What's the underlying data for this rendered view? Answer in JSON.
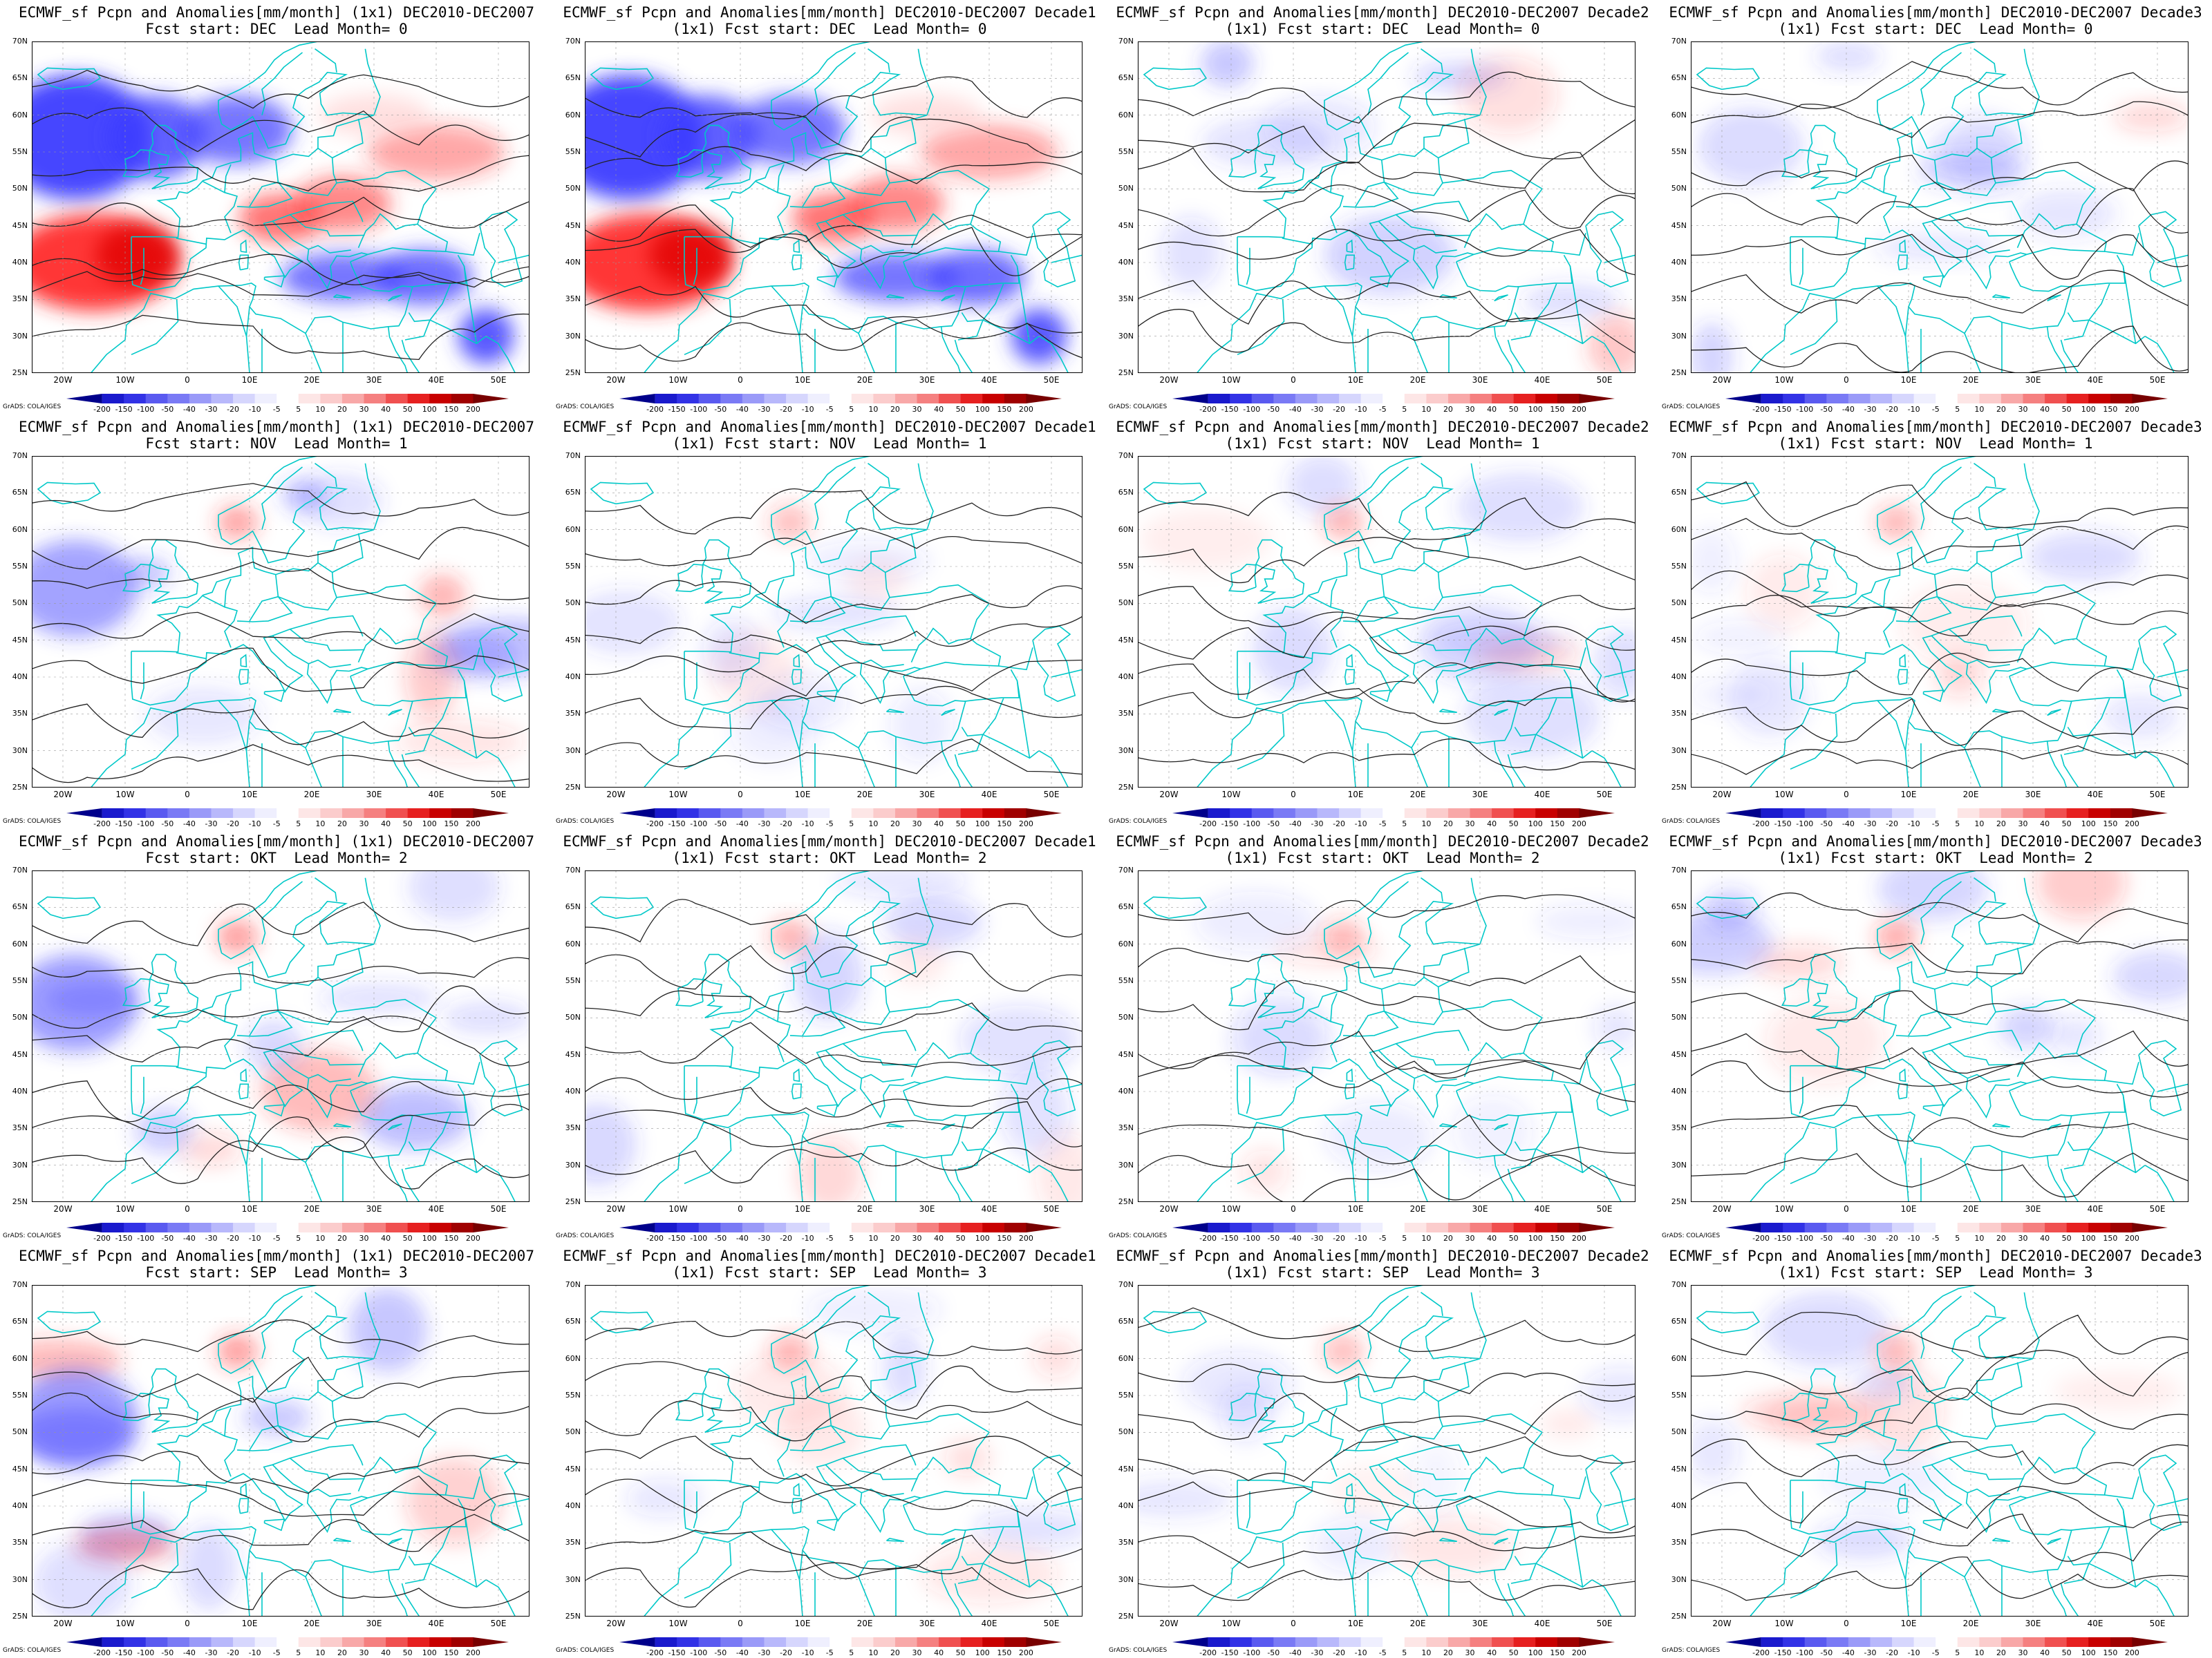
{
  "rows": [
    {
      "title_prefix": "ECMWF_sf Pcpn and Anomalies[mm/month]",
      "fcst_start": "DEC",
      "lead": "0"
    },
    {
      "title_prefix": "ECMWF_sf Pcpn and Anomalies[mm/month]",
      "fcst_start": "NOV",
      "lead": "1"
    },
    {
      "title_prefix": "ECMWF_sf Pcpn and Anomalies[mm/month]",
      "fcst_start": "OKT",
      "lead": "2"
    },
    {
      "title_prefix": "ECMWF_sf Pcpn and Anomalies[mm/month]",
      "fcst_start": "SEP",
      "lead": "3"
    }
  ],
  "panels": [
    {
      "line1": "ECMWF_sf Pcpn and Anomalies[mm/month] (1x1) DEC2010-DEC2007",
      "line2": "Fcst start: DEC  Lead Month= 0",
      "intensity": 1.0
    },
    {
      "line1": "ECMWF_sf Pcpn and Anomalies[mm/month] DEC2010-DEC2007 Decade1",
      "line2": "(1x1) Fcst start: DEC  Lead Month= 0",
      "intensity": 1.0
    },
    {
      "line1": "ECMWF_sf Pcpn and Anomalies[mm/month] DEC2010-DEC2007 Decade2",
      "line2": "(1x1) Fcst start: DEC  Lead Month= 0",
      "intensity": 0.4
    },
    {
      "line1": "ECMWF_sf Pcpn and Anomalies[mm/month] DEC2010-DEC2007 Decade3",
      "line2": "(1x1) Fcst start: DEC  Lead Month= 0",
      "intensity": 0.3
    },
    {
      "line1": "ECMWF_sf Pcpn and Anomalies[mm/month] (1x1) DEC2010-DEC2007",
      "line2": "Fcst start: NOV  Lead Month= 1",
      "intensity": 0.45
    },
    {
      "line1": "ECMWF_sf Pcpn and Anomalies[mm/month] DEC2010-DEC2007 Decade1",
      "line2": "(1x1) Fcst start: NOV  Lead Month= 1",
      "intensity": 0.2
    },
    {
      "line1": "ECMWF_sf Pcpn and Anomalies[mm/month] DEC2010-DEC2007 Decade2",
      "line2": "(1x1) Fcst start: NOV  Lead Month= 1",
      "intensity": 0.25
    },
    {
      "line1": "ECMWF_sf Pcpn and Anomalies[mm/month] DEC2010-DEC2007 Decade3",
      "line2": "(1x1) Fcst start: NOV  Lead Month= 1",
      "intensity": 0.25
    },
    {
      "line1": "ECMWF_sf Pcpn and Anomalies[mm/month] (1x1) DEC2010-DEC2007",
      "line2": "Fcst start: OKT  Lead Month= 2",
      "intensity": 0.5
    },
    {
      "line1": "ECMWF_sf Pcpn and Anomalies[mm/month] DEC2010-DEC2007 Decade1",
      "line2": "(1x1) Fcst start: OKT  Lead Month= 2",
      "intensity": 0.3
    },
    {
      "line1": "ECMWF_sf Pcpn and Anomalies[mm/month] DEC2010-DEC2007 Decade2",
      "line2": "(1x1) Fcst start: OKT  Lead Month= 2",
      "intensity": 0.2
    },
    {
      "line1": "ECMWF_sf Pcpn and Anomalies[mm/month] DEC2010-DEC2007 Decade3",
      "line2": "(1x1) Fcst start: OKT  Lead Month= 2",
      "intensity": 0.35
    },
    {
      "line1": "ECMWF_sf Pcpn and Anomalies[mm/month] (1x1) DEC2010-DEC2007",
      "line2": "Fcst start: SEP  Lead Month= 3",
      "intensity": 0.5
    },
    {
      "line1": "ECMWF_sf Pcpn and Anomalies[mm/month] DEC2010-DEC2007 Decade1",
      "line2": "(1x1) Fcst start: SEP  Lead Month= 3",
      "intensity": 0.25
    },
    {
      "line1": "ECMWF_sf Pcpn and Anomalies[mm/month] DEC2010-DEC2007 Decade2",
      "line2": "(1x1) Fcst start: SEP  Lead Month= 3",
      "intensity": 0.2
    },
    {
      "line1": "ECMWF_sf Pcpn and Anomalies[mm/month] DEC2010-DEC2007 Decade3",
      "line2": "(1x1) Fcst start: SEP  Lead Month= 3",
      "intensity": 0.25
    }
  ],
  "lat_ticks": [
    "70N",
    "65N",
    "60N",
    "55N",
    "50N",
    "45N",
    "40N",
    "35N",
    "30N",
    "25N"
  ],
  "lon_ticks": [
    "20W",
    "10W",
    "0",
    "10E",
    "20E",
    "30E",
    "40E",
    "50E"
  ],
  "colorbar_labels": [
    "-200",
    "-150",
    "-100",
    "-50",
    "-40",
    "-30",
    "-20",
    "-10",
    "-5",
    "5",
    "10",
    "20",
    "30",
    "40",
    "50",
    "100",
    "150",
    "200"
  ],
  "colorbar_colors": [
    "#00008b",
    "#1a1acd",
    "#3232e6",
    "#5a5af0",
    "#7a7af5",
    "#9a9af8",
    "#b8b8fb",
    "#d6d6fd",
    "#efeffe",
    "#ffffff",
    "#fde6e6",
    "#fbcccc",
    "#f8a8a8",
    "#f58080",
    "#f05050",
    "#e62020",
    "#c80000",
    "#a00000",
    "#780000"
  ],
  "credit": "GrADS: COLA/IGES",
  "colors": {
    "coast": "#00c8c8",
    "contour": "#222222",
    "blue": "#3c3cff",
    "red": "#ff2a2a"
  }
}
